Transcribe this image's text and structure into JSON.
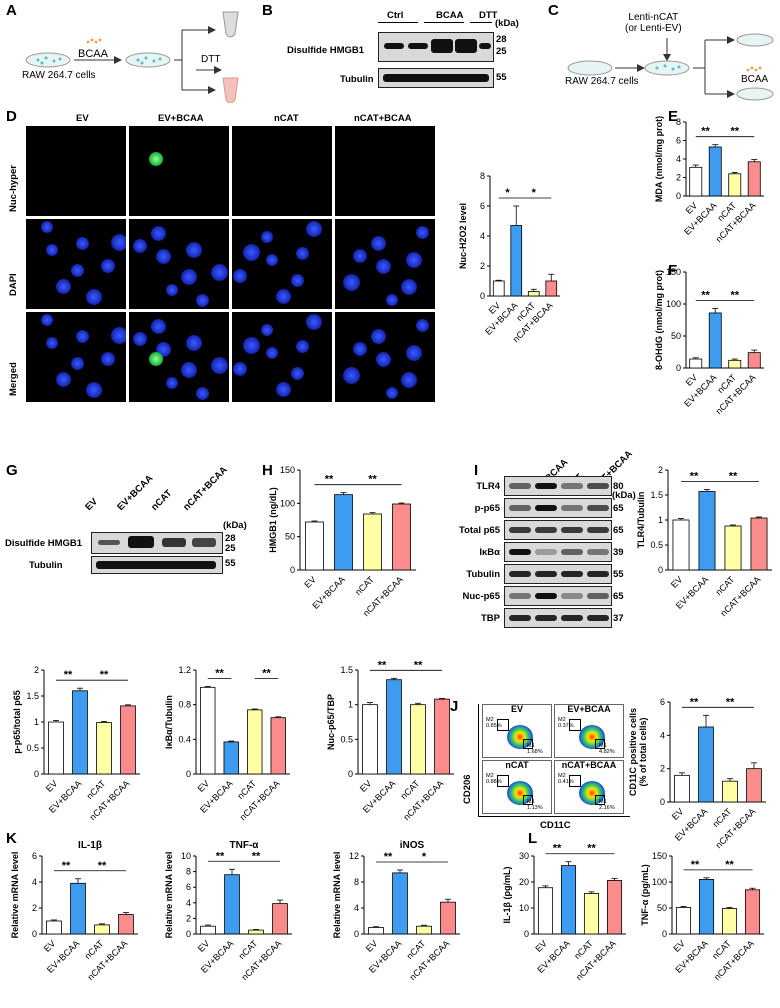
{
  "panels": {
    "A": "A",
    "B": "B",
    "C": "C",
    "D": "D",
    "E": "E",
    "F": "F",
    "G": "G",
    "H": "H",
    "I": "I",
    "J": "J",
    "K": "K",
    "L": "L"
  },
  "schemeA": {
    "reagent": "BCAA",
    "cells": "RAW 264.7 cells",
    "treat": "DTT"
  },
  "blotB": {
    "groups": [
      "Ctrl",
      "BCAA",
      "DTT"
    ],
    "rows": [
      "Disulfide HMGB1",
      "Tubulin"
    ],
    "kda": "(kDa)",
    "sizes": [
      "28",
      "25",
      "55"
    ]
  },
  "schemeC": {
    "virus": "Lenti-nCAT\n(or Lenti-EV)",
    "cells": "RAW 264.7 cells",
    "reagent": "BCAA"
  },
  "microD": {
    "cols": [
      "EV",
      "EV+BCAA",
      "nCAT",
      "nCAT+BCAA"
    ],
    "rows": [
      "Nuc-hyper",
      "DAPI",
      "Merged"
    ]
  },
  "groups4": [
    "EV",
    "EV+BCAA",
    "nCAT",
    "nCAT+BCAA"
  ],
  "colors": {
    "EV": "#ffffff",
    "EV+BCAA": "#3d9bf0",
    "nCAT": "#ffffa6",
    "nCAT+BCAA": "#fa8c8c"
  },
  "blotG": {
    "rows": [
      "Disulfide HMGB1",
      "Tubulin"
    ],
    "kda": "(kDa)",
    "sizes": [
      "28",
      "25",
      "55"
    ]
  },
  "blotI": {
    "rows": [
      "TLR4",
      "p-p65",
      "Total p65",
      "IκBα",
      "Tubulin",
      "Nuc-p65",
      "TBP"
    ],
    "kda": "(kDa)",
    "sizes": [
      "80",
      "65",
      "65",
      "39",
      "55",
      "65",
      "37"
    ]
  },
  "facsJ": {
    "ylabel": "CD206",
    "xlabel": "CD11C",
    "plots": [
      {
        "title": "EV",
        "m2": "M2\n0.85%",
        "m1": "M1\n1.68%"
      },
      {
        "title": "EV+BCAA",
        "m2": "M2\n0.37%",
        "m1": "M1\n4.82%"
      },
      {
        "title": "nCAT",
        "m2": "M2\n0.88%",
        "m1": "M1\n1.13%"
      },
      {
        "title": "nCAT+BCAA",
        "m2": "M2\n0.41%",
        "m1": "M1\n2.16%"
      }
    ]
  },
  "chart_data": [
    {
      "id": "D",
      "type": "bar",
      "categories": [
        "EV",
        "EV+BCAA",
        "nCAT",
        "nCAT+BCAA"
      ],
      "values": [
        1.0,
        4.7,
        0.3,
        1.0
      ],
      "errors": [
        0.05,
        1.3,
        0.15,
        0.45
      ],
      "ylabel": "Nuc-H2O2 level",
      "ylim": [
        0,
        8
      ],
      "yticks": [
        0,
        2,
        4,
        6,
        8
      ],
      "sig": [
        {
          "a": 0,
          "b": 1,
          "t": "*"
        },
        {
          "a": 1,
          "b": 3,
          "t": "*"
        }
      ]
    },
    {
      "id": "E",
      "type": "bar",
      "categories": [
        "EV",
        "EV+BCAA",
        "nCAT",
        "nCAT+BCAA"
      ],
      "values": [
        3.1,
        5.3,
        2.4,
        3.7
      ],
      "errors": [
        0.25,
        0.25,
        0.15,
        0.25
      ],
      "ylabel": "MDA (nmol/mg prot)",
      "ylim": [
        0,
        8
      ],
      "yticks": [
        0,
        2,
        4,
        6,
        8
      ],
      "sig": [
        {
          "a": 0,
          "b": 1,
          "t": "**"
        },
        {
          "a": 1,
          "b": 3,
          "t": "**"
        }
      ]
    },
    {
      "id": "F",
      "type": "bar",
      "categories": [
        "EV",
        "EV+BCAA",
        "nCAT",
        "nCAT+BCAA"
      ],
      "values": [
        14,
        86,
        12,
        24
      ],
      "errors": [
        2,
        7,
        2,
        4
      ],
      "ylabel": "8-OHdG (nmol/mg prot)",
      "ylim": [
        0,
        150
      ],
      "yticks": [
        0,
        50,
        100,
        150
      ],
      "sig": [
        {
          "a": 0,
          "b": 1,
          "t": "**"
        },
        {
          "a": 1,
          "b": 3,
          "t": "**"
        }
      ]
    },
    {
      "id": "H",
      "type": "bar",
      "categories": [
        "EV",
        "EV+BCAA",
        "nCAT",
        "nCAT+BCAA"
      ],
      "values": [
        72,
        113,
        84,
        99
      ],
      "errors": [
        1.5,
        3,
        2,
        1.5
      ],
      "ylabel": "HMGB1 (ng/dL)",
      "ylim": [
        0,
        150
      ],
      "yticks": [
        0,
        50,
        100,
        150
      ],
      "sig": [
        {
          "a": 0,
          "b": 1,
          "t": "**"
        },
        {
          "a": 1,
          "b": 3,
          "t": "**"
        }
      ]
    },
    {
      "id": "I",
      "type": "bar",
      "categories": [
        "EV",
        "EV+BCAA",
        "nCAT",
        "nCAT+BCAA"
      ],
      "values": [
        1.0,
        1.57,
        0.88,
        1.04
      ],
      "errors": [
        0.03,
        0.04,
        0.02,
        0.02
      ],
      "ylabel": "TLR4/Tubulin",
      "ylim": [
        0,
        2.0
      ],
      "yticks": [
        0,
        0.5,
        1.0,
        1.5,
        2.0
      ],
      "sig": [
        {
          "a": 0,
          "b": 1,
          "t": "**"
        },
        {
          "a": 1,
          "b": 3,
          "t": "**"
        }
      ]
    },
    {
      "id": "G1",
      "type": "bar",
      "categories": [
        "EV",
        "EV+BCAA",
        "nCAT",
        "nCAT+BCAA"
      ],
      "values": [
        1.0,
        1.6,
        0.99,
        1.31
      ],
      "errors": [
        0.03,
        0.05,
        0.02,
        0.02
      ],
      "ylabel": "p-p65/total p65",
      "ylim": [
        0,
        2.0
      ],
      "yticks": [
        0,
        0.5,
        1.0,
        1.5,
        2.0
      ],
      "sig": [
        {
          "a": 0,
          "b": 1,
          "t": "**"
        },
        {
          "a": 1,
          "b": 3,
          "t": "**"
        }
      ]
    },
    {
      "id": "G2",
      "type": "bar",
      "categories": [
        "EV",
        "EV+BCAA",
        "nCAT",
        "nCAT+BCAA"
      ],
      "values": [
        1.0,
        0.37,
        0.74,
        0.65
      ],
      "errors": [
        0.01,
        0.01,
        0.01,
        0.01
      ],
      "ylabel": "IκBα/Tubulin",
      "ylim": [
        0,
        1.2
      ],
      "yticks": [
        0,
        0.4,
        0.8,
        1.2
      ],
      "sig": [
        {
          "a": 0,
          "b": 1,
          "t": "**"
        },
        {
          "a": 2,
          "b": 3,
          "t": "**"
        }
      ]
    },
    {
      "id": "G3",
      "type": "bar",
      "categories": [
        "EV",
        "EV+BCAA",
        "nCAT",
        "nCAT+BCAA"
      ],
      "values": [
        1.0,
        1.36,
        1.0,
        1.08
      ],
      "errors": [
        0.03,
        0.02,
        0.02,
        0.01
      ],
      "ylabel": "Nuc-p65/TBP",
      "ylim": [
        0,
        1.5
      ],
      "yticks": [
        0,
        0.5,
        1.0,
        1.5
      ],
      "sig": [
        {
          "a": 0,
          "b": 1,
          "t": "**"
        },
        {
          "a": 1,
          "b": 3,
          "t": "**"
        }
      ]
    },
    {
      "id": "J",
      "type": "bar",
      "categories": [
        "EV",
        "EV+BCAA",
        "nCAT",
        "nCAT+BCAA"
      ],
      "values": [
        1.6,
        4.5,
        1.25,
        2.0
      ],
      "errors": [
        0.15,
        0.7,
        0.15,
        0.35
      ],
      "ylabel": "CD11C positive cells\n(% of total cells)",
      "ylim": [
        0,
        6
      ],
      "yticks": [
        0,
        2,
        4,
        6
      ],
      "sig": [
        {
          "a": 0,
          "b": 1,
          "t": "**"
        },
        {
          "a": 1,
          "b": 3,
          "t": "**"
        }
      ]
    },
    {
      "id": "K1",
      "type": "bar",
      "title": "IL-1β",
      "categories": [
        "EV",
        "EV+BCAA",
        "nCAT",
        "nCAT+BCAA"
      ],
      "values": [
        1.0,
        3.9,
        0.7,
        1.5
      ],
      "errors": [
        0.08,
        0.35,
        0.08,
        0.15
      ],
      "ylabel": "Relative mRNA level",
      "ylim": [
        0,
        6
      ],
      "yticks": [
        0,
        2,
        4,
        6
      ],
      "sig": [
        {
          "a": 0,
          "b": 1,
          "t": "**"
        },
        {
          "a": 1,
          "b": 3,
          "t": "**"
        }
      ]
    },
    {
      "id": "K2",
      "type": "bar",
      "title": "TNF-α",
      "categories": [
        "EV",
        "EV+BCAA",
        "nCAT",
        "nCAT+BCAA"
      ],
      "values": [
        1.0,
        7.6,
        0.5,
        3.9
      ],
      "errors": [
        0.15,
        0.7,
        0.08,
        0.45
      ],
      "ylabel": "Relative mRNA level",
      "ylim": [
        0,
        10
      ],
      "yticks": [
        0,
        2,
        4,
        6,
        8,
        10
      ],
      "sig": [
        {
          "a": 0,
          "b": 1,
          "t": "**"
        },
        {
          "a": 1,
          "b": 3,
          "t": "**"
        }
      ]
    },
    {
      "id": "K3",
      "type": "bar",
      "title": "iNOS",
      "categories": [
        "EV",
        "EV+BCAA",
        "nCAT",
        "nCAT+BCAA"
      ],
      "values": [
        1.0,
        9.4,
        1.2,
        4.9
      ],
      "errors": [
        0.12,
        0.45,
        0.15,
        0.45
      ],
      "ylabel": "Relative mRNA level",
      "ylim": [
        0,
        12
      ],
      "yticks": [
        0,
        4,
        8,
        12
      ],
      "sig": [
        {
          "a": 0,
          "b": 1,
          "t": "**"
        },
        {
          "a": 1,
          "b": 3,
          "t": "*"
        }
      ]
    },
    {
      "id": "L1",
      "type": "bar",
      "categories": [
        "EV",
        "EV+BCAA",
        "nCAT",
        "nCAT+BCAA"
      ],
      "values": [
        17.8,
        26.3,
        15.6,
        20.6
      ],
      "errors": [
        0.7,
        1.5,
        0.6,
        0.8
      ],
      "ylabel": "IL-1β (pg/mL)",
      "ylim": [
        0,
        30
      ],
      "yticks": [
        0,
        10,
        20,
        30
      ],
      "sig": [
        {
          "a": 0,
          "b": 1,
          "t": "**"
        },
        {
          "a": 1,
          "b": 3,
          "t": "**"
        }
      ]
    },
    {
      "id": "L2",
      "type": "bar",
      "categories": [
        "EV",
        "EV+BCAA",
        "nCAT",
        "nCAT+BCAA"
      ],
      "values": [
        51,
        105,
        49,
        85
      ],
      "errors": [
        2,
        3,
        2,
        3
      ],
      "ylabel": "TNF-α (pg/mL)",
      "ylim": [
        0,
        150
      ],
      "yticks": [
        0,
        50,
        100,
        150
      ],
      "sig": [
        {
          "a": 0,
          "b": 1,
          "t": "**"
        },
        {
          "a": 1,
          "b": 3,
          "t": "**"
        }
      ]
    }
  ]
}
